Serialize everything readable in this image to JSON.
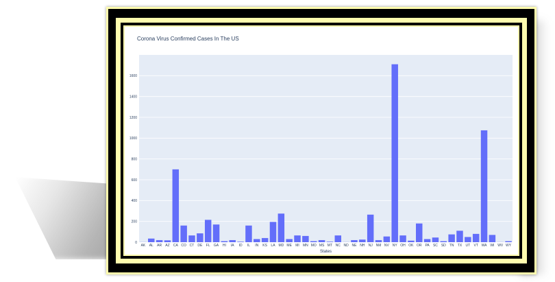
{
  "chart_data": {
    "type": "bar",
    "title": "Corona Virus Confirmed Cases In The US",
    "xlabel": "States",
    "ylabel": "",
    "ylim": [
      0,
      1800
    ],
    "yticks": [
      0,
      200,
      400,
      600,
      800,
      1000,
      1200,
      1400,
      1600
    ],
    "grid": true,
    "bar_color": "#636efa",
    "plot_bg": "#e5ecf6",
    "categories": [
      "AK",
      "AL",
      "AR",
      "AZ",
      "CA",
      "CO",
      "CT",
      "DE",
      "FL",
      "GA",
      "HI",
      "IA",
      "ID",
      "IL",
      "IN",
      "KS",
      "LA",
      "MD",
      "ME",
      "MI",
      "MN",
      "MO",
      "MS",
      "MT",
      "NC",
      "ND",
      "NE",
      "NH",
      "NJ",
      "NM",
      "NV",
      "NY",
      "OH",
      "OK",
      "OR",
      "PA",
      "SC",
      "SD",
      "TN",
      "TX",
      "UT",
      "VT",
      "WA",
      "WI",
      "WV",
      "WY"
    ],
    "values": [
      1,
      35,
      20,
      18,
      700,
      160,
      65,
      85,
      215,
      170,
      10,
      20,
      5,
      160,
      30,
      40,
      195,
      275,
      30,
      65,
      60,
      10,
      20,
      5,
      65,
      1,
      20,
      25,
      265,
      20,
      55,
      1710,
      65,
      15,
      180,
      30,
      45,
      10,
      75,
      110,
      50,
      80,
      1075,
      70,
      1,
      10
    ]
  }
}
